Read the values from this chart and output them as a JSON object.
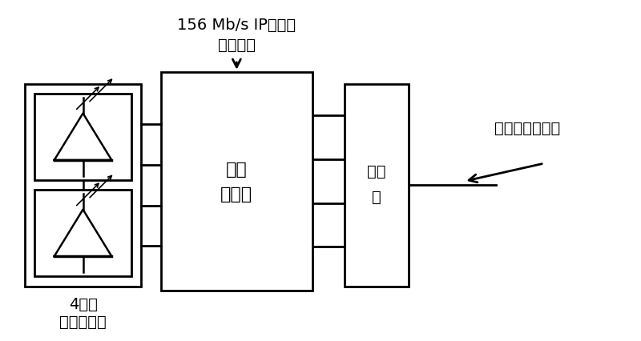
{
  "bg_color": "#ffffff",
  "line_color": "#000000",
  "title_top": "156 Mb/s IP数据包",
  "title_bot": "路由信息",
  "label_4wavelen": "4波长",
  "label_laser_arr": "激光器阵列",
  "label_encoder_1": "标记",
  "label_encoder_2": "编码器",
  "label_combiner_1": "合波",
  "label_combiner_2": "器",
  "label_output": "光谱幅度码标记",
  "font_size": 14
}
